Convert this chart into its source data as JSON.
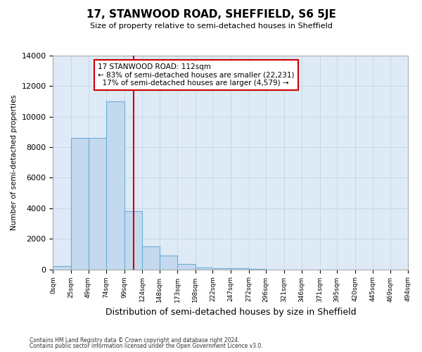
{
  "title": "17, STANWOOD ROAD, SHEFFIELD, S6 5JE",
  "subtitle": "Size of property relative to semi-detached houses in Sheffield",
  "xlabel": "Distribution of semi-detached houses by size in Sheffield",
  "ylabel": "Number of semi-detached properties",
  "property_label": "17 STANWOOD ROAD: 112sqm",
  "pct_smaller": 83,
  "count_smaller": 22231,
  "pct_larger": 17,
  "count_larger": 4579,
  "bin_edges": [
    0,
    25,
    49,
    74,
    99,
    124,
    148,
    173,
    198,
    222,
    247,
    272,
    296,
    321,
    346,
    371,
    395,
    420,
    445,
    469,
    494
  ],
  "bin_counts": [
    200,
    8600,
    8600,
    11000,
    3800,
    1500,
    900,
    350,
    120,
    70,
    50,
    30,
    0,
    0,
    0,
    0,
    0,
    0,
    0,
    0
  ],
  "bar_color": "#c5d9ee",
  "bar_edge_color": "#6baed6",
  "vline_color": "#cc0000",
  "vline_x": 112,
  "annotation_box_color": "#cc0000",
  "grid_color": "#c8d8e8",
  "background_color": "#deeaf6",
  "ylim": [
    0,
    14000
  ],
  "yticks": [
    0,
    2000,
    4000,
    6000,
    8000,
    10000,
    12000,
    14000
  ],
  "tick_labels": [
    "0sqm",
    "25sqm",
    "49sqm",
    "74sqm",
    "99sqm",
    "124sqm",
    "148sqm",
    "173sqm",
    "198sqm",
    "222sqm",
    "247sqm",
    "272sqm",
    "296sqm",
    "321sqm",
    "346sqm",
    "371sqm",
    "395sqm",
    "420sqm",
    "445sqm",
    "469sqm",
    "494sqm"
  ],
  "footer_line1": "Contains HM Land Registry data © Crown copyright and database right 2024.",
  "footer_line2": "Contains public sector information licensed under the Open Government Licence v3.0."
}
